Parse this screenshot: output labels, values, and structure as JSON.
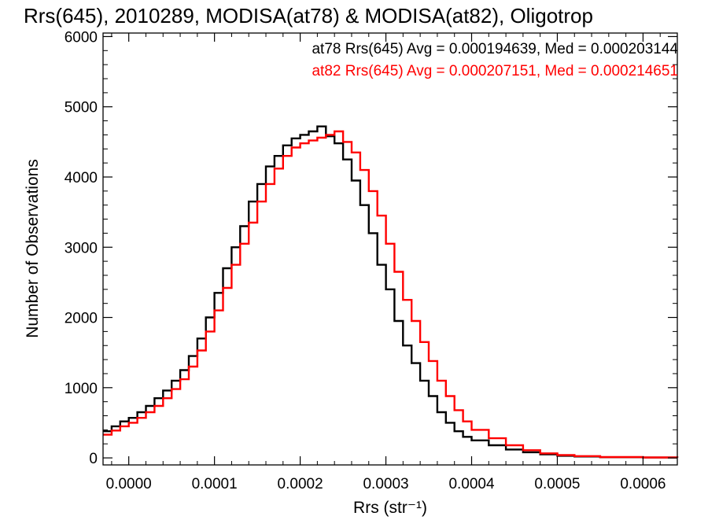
{
  "chart_data": {
    "type": "line",
    "step": true,
    "title": "Rrs(645), 2010289, MODISA(at78) & MODISA(at82), Oligotrop",
    "xlabel": "Rrs (str⁻¹)",
    "ylabel": "Number of Observations",
    "xlim": [
      -3e-05,
      0.00064
    ],
    "ylim": [
      -100,
      6050
    ],
    "xticks": [
      0.0,
      0.0001,
      0.0002,
      0.0003,
      0.0004,
      0.0005,
      0.0006
    ],
    "xtick_labels": [
      "0.0000",
      "0.0001",
      "0.0002",
      "0.0003",
      "0.0004",
      "0.0005",
      "0.0006"
    ],
    "yticks": [
      0,
      1000,
      2000,
      3000,
      4000,
      5000,
      6000
    ],
    "ytick_labels": [
      "0",
      "1000",
      "2000",
      "3000",
      "4000",
      "5000",
      "6000"
    ],
    "grid": false,
    "legend_position": "top-right",
    "annotations": [
      {
        "text": "at78 Rrs(645) Avg = 0.000194639, Med = 0.000203144",
        "color": "#000000"
      },
      {
        "text": "at82 Rrs(645) Avg = 0.000207151, Med = 0.000214651",
        "color": "#ff0000"
      }
    ],
    "series": [
      {
        "color": "#000000",
        "x": [
          -3e-05,
          -2e-05,
          -1e-05,
          0.0,
          1e-05,
          2e-05,
          3e-05,
          4e-05,
          5e-05,
          6e-05,
          7e-05,
          8e-05,
          9e-05,
          0.0001,
          0.00011,
          0.00012,
          0.00013,
          0.00014,
          0.00015,
          0.00016,
          0.00017,
          0.00018,
          0.00019,
          0.0002,
          0.00021,
          0.00022,
          0.00023,
          0.00024,
          0.00025,
          0.00026,
          0.00027,
          0.00028,
          0.00029,
          0.0003,
          0.00031,
          0.00032,
          0.00033,
          0.00034,
          0.00035,
          0.00036,
          0.00037,
          0.00038,
          0.00039,
          0.0004,
          0.00042,
          0.00044,
          0.00046,
          0.00048,
          0.0005,
          0.00052,
          0.00055,
          0.0006,
          0.00064
        ],
        "y": [
          380,
          450,
          520,
          570,
          650,
          740,
          850,
          960,
          1100,
          1250,
          1450,
          1700,
          2000,
          2350,
          2700,
          3000,
          3300,
          3650,
          3900,
          4150,
          4300,
          4450,
          4550,
          4600,
          4650,
          4720,
          4580,
          4480,
          4250,
          3950,
          3600,
          3200,
          2750,
          2400,
          1950,
          1600,
          1350,
          1100,
          880,
          650,
          500,
          380,
          300,
          250,
          180,
          120,
          80,
          50,
          30,
          20,
          10,
          5,
          3
        ]
      },
      {
        "color": "#ff0000",
        "x": [
          -3e-05,
          -2e-05,
          -1e-05,
          0.0,
          1e-05,
          2e-05,
          3e-05,
          4e-05,
          5e-05,
          6e-05,
          7e-05,
          8e-05,
          9e-05,
          0.0001,
          0.00011,
          0.00012,
          0.00013,
          0.00014,
          0.00015,
          0.00016,
          0.00017,
          0.00018,
          0.00019,
          0.0002,
          0.00021,
          0.00022,
          0.00023,
          0.00024,
          0.00025,
          0.00026,
          0.00027,
          0.00028,
          0.00029,
          0.0003,
          0.00031,
          0.00032,
          0.00033,
          0.00034,
          0.00035,
          0.00036,
          0.00037,
          0.00038,
          0.00039,
          0.0004,
          0.00042,
          0.00044,
          0.00046,
          0.00048,
          0.0005,
          0.00052,
          0.00055,
          0.0006,
          0.00064
        ],
        "y": [
          330,
          390,
          450,
          500,
          570,
          650,
          740,
          850,
          980,
          1120,
          1300,
          1530,
          1800,
          2100,
          2420,
          2750,
          3050,
          3350,
          3650,
          3900,
          4120,
          4300,
          4420,
          4480,
          4520,
          4560,
          4600,
          4650,
          4500,
          4350,
          4100,
          3800,
          3450,
          3050,
          2650,
          2250,
          1950,
          1650,
          1380,
          1100,
          880,
          680,
          520,
          400,
          280,
          180,
          110,
          65,
          40,
          25,
          12,
          6,
          3
        ]
      }
    ]
  }
}
